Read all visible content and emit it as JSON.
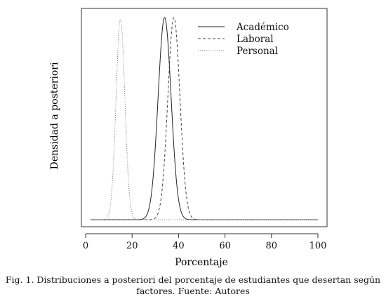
{
  "chart_data": {
    "type": "line",
    "title": "",
    "xlabel": "Porcentaje",
    "ylabel": "Densidad a posteriori",
    "xlim": [
      0,
      100
    ],
    "xticks": [
      0,
      20,
      40,
      60,
      80,
      100
    ],
    "x_range_drawn": [
      2,
      100
    ],
    "yticks_shown": false,
    "grid": false,
    "legend_position": "top-right",
    "series": [
      {
        "name": "Académico",
        "style": "solid",
        "color": "#222222",
        "peak_x": 34,
        "sd": 2.8,
        "relative_peak": 1.0
      },
      {
        "name": "Laboral",
        "style": "dashed",
        "color": "#444444",
        "peak_x": 38,
        "sd": 2.6,
        "relative_peak": 1.0
      },
      {
        "name": "Personal",
        "style": "dotted",
        "color": "#777777",
        "peak_x": 15,
        "sd": 1.9,
        "relative_peak": 0.99
      }
    ]
  },
  "caption": {
    "line1": "Fig. 1. Distribuciones a posteriori del porcentaje de estudiantes que desertan según",
    "line2": "factores. Fuente: Autores"
  }
}
